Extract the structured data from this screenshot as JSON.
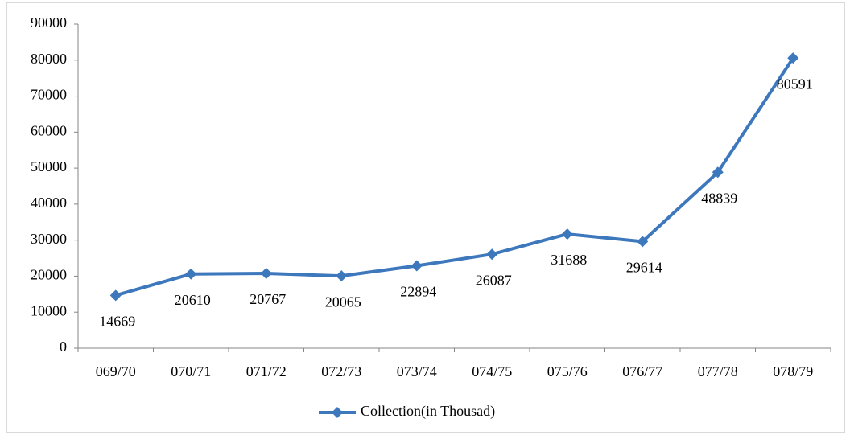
{
  "chart_data": {
    "type": "line",
    "categories": [
      "069/70",
      "070/71",
      "071/72",
      "072/73",
      "073/74",
      "074/75",
      "075/76",
      "076/77",
      "077/78",
      "078/79"
    ],
    "series": [
      {
        "name": "Collection(in Thousad)",
        "color": "#3d78bd",
        "values": [
          14669,
          20610,
          20767,
          20065,
          22894,
          26087,
          31688,
          29614,
          48839,
          80591
        ]
      }
    ],
    "ylim": [
      0,
      90000
    ],
    "yticks": [
      0,
      10000,
      20000,
      30000,
      40000,
      50000,
      60000,
      70000,
      80000,
      90000
    ],
    "legend": "bottom"
  }
}
